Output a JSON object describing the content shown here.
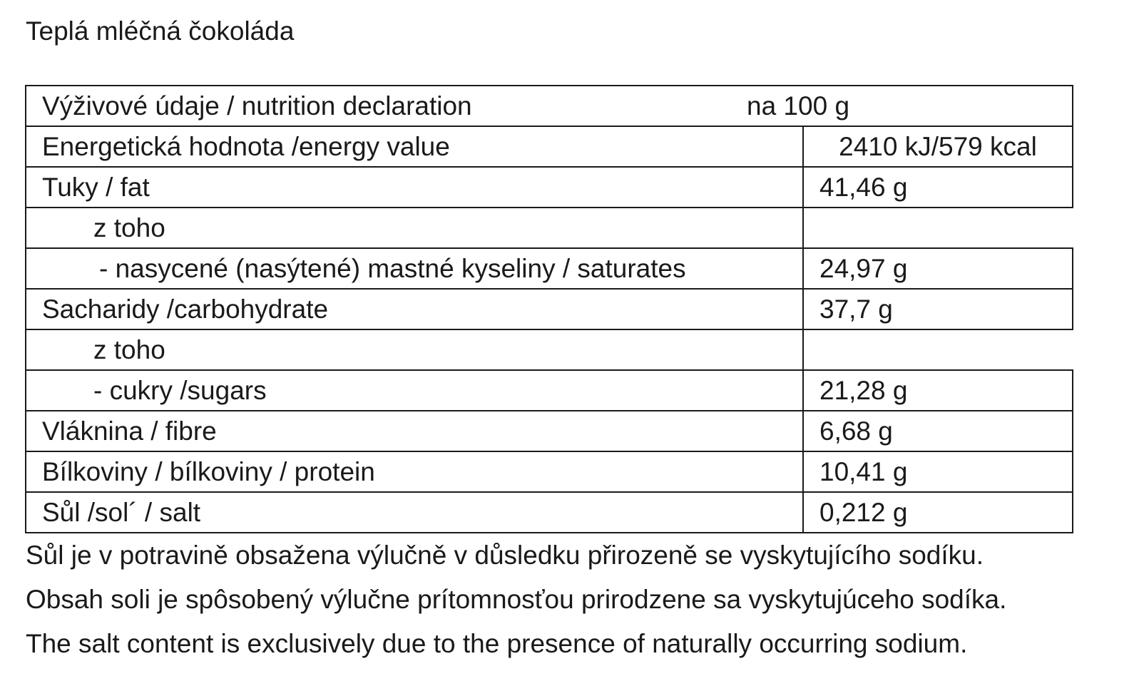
{
  "document": {
    "title": "Teplá mléčná čokoláda"
  },
  "table": {
    "header": {
      "label": "Výživové údaje / nutrition declaration",
      "per": "na 100 g"
    },
    "rows": [
      {
        "label": "Energetická hodnota /energy value",
        "value": "2410 kJ/579 kcal"
      },
      {
        "label": "Tuky / fat",
        "value": "41,46 g"
      },
      {
        "label": "z toho",
        "value": ""
      },
      {
        "label": " - nasycené (nasýtené) mastné kyseliny / saturates",
        "value": "24,97 g"
      },
      {
        "label": "Sacharidy /carbohydrate",
        "value": "37,7 g"
      },
      {
        "label": "z toho",
        "value": ""
      },
      {
        "label": "- cukry /sugars",
        "value": "21,28 g"
      },
      {
        "label": "Vláknina / fibre",
        "value": "6,68 g"
      },
      {
        "label": "Bílkoviny / bílkoviny / protein",
        "value": "10,41 g"
      },
      {
        "label": "Sůl /sol´ / salt",
        "value": "0,212 g"
      }
    ]
  },
  "notes": [
    "Sůl je v potravině obsažena výlučně v důsledku přirozeně se vyskytujícího sodíku.",
    "Obsah soli je spôsobený výlučne prítomnosťou prirodzene sa vyskytujúceho sodíka.",
    "The salt content is exclusively due to the presence of naturally occurring sodium."
  ]
}
